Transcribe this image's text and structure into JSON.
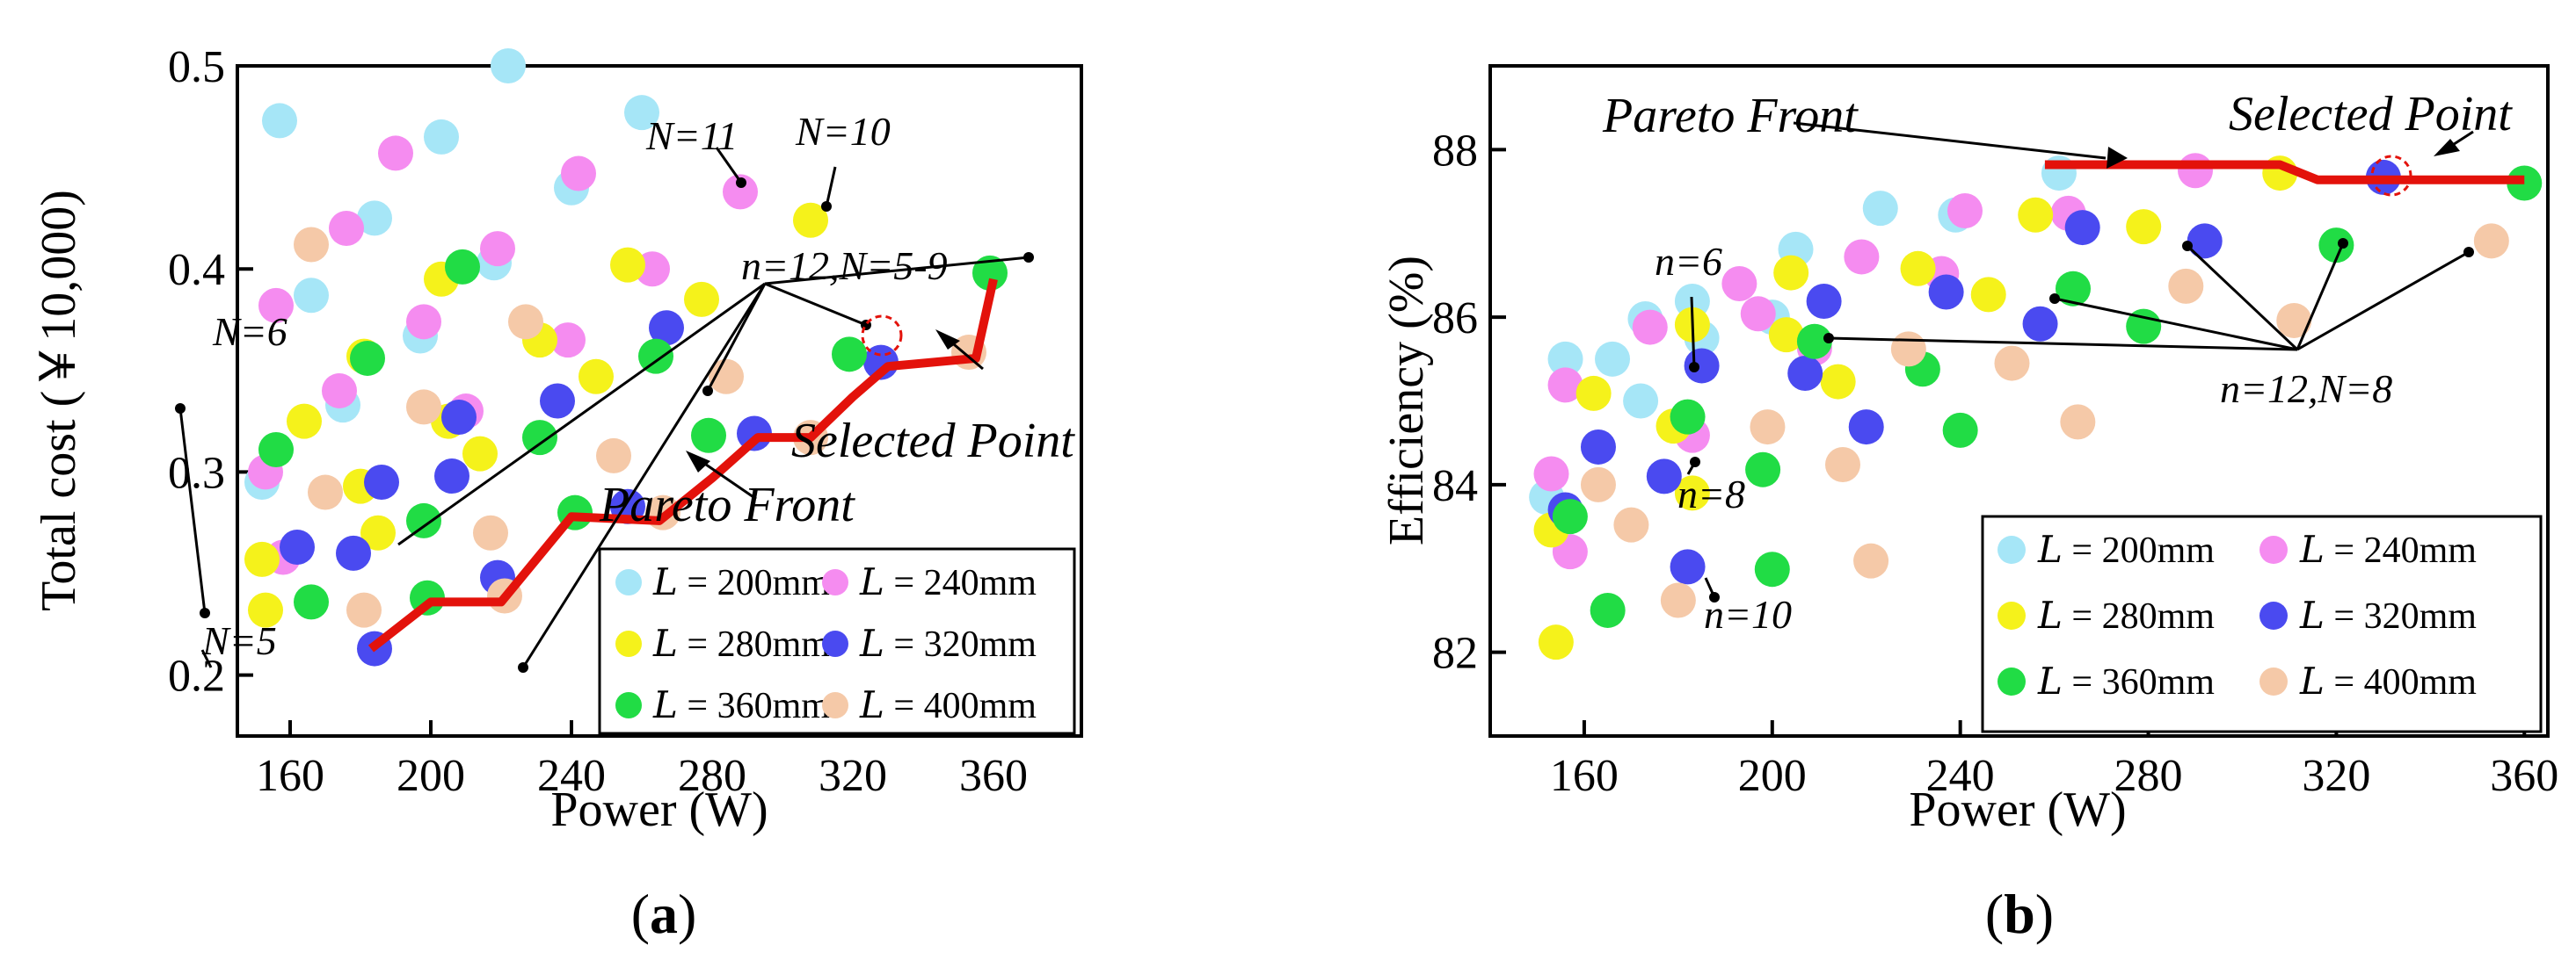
{
  "colors": {
    "L200": "#a6e6f7",
    "L240": "#f58cf0",
    "L280": "#f5f21b",
    "L320": "#4a4af0",
    "L360": "#21dc45",
    "L400": "#f5c9a8",
    "pareto": "#e3120b"
  },
  "panels": [
    {
      "caption_letter": "a",
      "xlabel": "Power (W)",
      "ylabel": "Total cost (￥10,000)",
      "annotations": {
        "n6": "N=6",
        "n5": "N=5",
        "n11": "N=11",
        "n10": "N=10",
        "n12_range": "n=12,N=5-9",
        "selected": "Selected Point",
        "pareto": "Pareto Front"
      },
      "legend": [
        {
          "label": "𝐿 = 200mm",
          "color_key": "L200"
        },
        {
          "label": "𝐿 = 240mm",
          "color_key": "L240"
        },
        {
          "label": "𝐿 = 280mm",
          "color_key": "L280"
        },
        {
          "label": "𝐿 = 320mm",
          "color_key": "L320"
        },
        {
          "label": "𝐿 = 360mm",
          "color_key": "L360"
        },
        {
          "label": "𝐿 = 400mm",
          "color_key": "L400"
        }
      ]
    },
    {
      "caption_letter": "b",
      "xlabel": "Power (W)",
      "ylabel": "Efficiency (%)",
      "annotations": {
        "pareto": "Pareto Front",
        "selected": "Selected Point",
        "n6": "n=6",
        "n8": "n=8",
        "n10": "n=10",
        "n12_n8": "n=12,N=8"
      },
      "legend": [
        {
          "label": "𝐿 = 200mm",
          "color_key": "L200"
        },
        {
          "label": "𝐿 = 240mm",
          "color_key": "L240"
        },
        {
          "label": "𝐿 = 280mm",
          "color_key": "L280"
        },
        {
          "label": "𝐿 = 320mm",
          "color_key": "L320"
        },
        {
          "label": "𝐿 = 360mm",
          "color_key": "L360"
        },
        {
          "label": "𝐿 = 400mm",
          "color_key": "L400"
        }
      ]
    }
  ],
  "chart_data": [
    {
      "type": "scatter",
      "title": "",
      "xlabel": "Power (W)",
      "ylabel": "Total cost (￥10,000)",
      "xlim": [
        145,
        385
      ],
      "ylim": [
        0.17,
        0.5
      ],
      "xticks": [
        160,
        200,
        240,
        280,
        320,
        360
      ],
      "yticks": [
        0.2,
        0.3,
        0.4,
        0.5
      ],
      "series": [
        {
          "name": "L = 200mm",
          "color_key": "L200",
          "points": [
            [
              152,
              0.295
            ],
            [
              157,
              0.473
            ],
            [
              166,
              0.387
            ],
            [
              175,
              0.333
            ],
            [
              184,
              0.425
            ],
            [
              197,
              0.367
            ],
            [
              203,
              0.465
            ],
            [
              218,
              0.403
            ],
            [
              222,
              0.5
            ],
            [
              240,
              0.44
            ],
            [
              260,
              0.477
            ]
          ]
        },
        {
          "name": "L = 240mm",
          "color_key": "L240",
          "points": [
            [
              153,
              0.3
            ],
            [
              156,
              0.382
            ],
            [
              158,
              0.258
            ],
            [
              174,
              0.34
            ],
            [
              176,
              0.42
            ],
            [
              190,
              0.457
            ],
            [
              198,
              0.374
            ],
            [
              210,
              0.33
            ],
            [
              219,
              0.41
            ],
            [
              239,
              0.365
            ],
            [
              242,
              0.447
            ],
            [
              263,
              0.4
            ],
            [
              288,
              0.438
            ]
          ]
        },
        {
          "name": "L = 280mm",
          "color_key": "L280",
          "points": [
            [
              152,
              0.257
            ],
            [
              153,
              0.232
            ],
            [
              164,
              0.325
            ],
            [
              181,
              0.357
            ],
            [
              180,
              0.293
            ],
            [
              185,
              0.27
            ],
            [
              203,
              0.395
            ],
            [
              205,
              0.325
            ],
            [
              214,
              0.309
            ],
            [
              231,
              0.365
            ],
            [
              247,
              0.347
            ],
            [
              256,
              0.402
            ],
            [
              277,
              0.385
            ],
            [
              308,
              0.424
            ]
          ]
        },
        {
          "name": "L = 320mm",
          "color_key": "L320",
          "points": [
            [
              162,
              0.263
            ],
            [
              178,
              0.26
            ],
            [
              186,
              0.295
            ],
            [
              184,
              0.213
            ],
            [
              208,
              0.327
            ],
            [
              206,
              0.298
            ],
            [
              219,
              0.248
            ],
            [
              236,
              0.335
            ],
            [
              256,
              0.283
            ],
            [
              267,
              0.371
            ],
            [
              292,
              0.319
            ],
            [
              328,
              0.354
            ]
          ]
        },
        {
          "name": "L = 360mm",
          "color_key": "L360",
          "points": [
            [
              156,
              0.311
            ],
            [
              166,
              0.236
            ],
            [
              182,
              0.356
            ],
            [
              198,
              0.276
            ],
            [
              199,
              0.238
            ],
            [
              209,
              0.401
            ],
            [
              231,
              0.317
            ],
            [
              241,
              0.28
            ],
            [
              264,
              0.357
            ],
            [
              279,
              0.318
            ],
            [
              319,
              0.358
            ],
            [
              359,
              0.398
            ]
          ]
        },
        {
          "name": "L = 400mm",
          "color_key": "L400",
          "points": [
            [
              166,
              0.412
            ],
            [
              170,
              0.29
            ],
            [
              181,
              0.232
            ],
            [
              198,
              0.332
            ],
            [
              217,
              0.27
            ],
            [
              221,
              0.239
            ],
            [
              227,
              0.374
            ],
            [
              252,
              0.308
            ],
            [
              266,
              0.28
            ],
            [
              284,
              0.347
            ],
            [
              308,
              0.317
            ],
            [
              353,
              0.359
            ]
          ]
        }
      ],
      "pareto_front": {
        "x": [
          183,
          200,
          220,
          240,
          265,
          280,
          293,
          308,
          320,
          330,
          355,
          360
        ],
        "y": [
          0.213,
          0.236,
          0.236,
          0.278,
          0.276,
          0.297,
          0.317,
          0.317,
          0.337,
          0.352,
          0.356,
          0.395
        ]
      },
      "selected_point": {
        "x": 330,
        "y": 0.352
      }
    },
    {
      "type": "scatter",
      "title": "",
      "xlabel": "Power (W)",
      "ylabel": "Efficiency (%)",
      "xlim": [
        140,
        365
      ],
      "ylim": [
        81,
        89
      ],
      "xticks": [
        160,
        200,
        240,
        280,
        320,
        360
      ],
      "yticks": [
        82,
        84,
        86,
        88
      ],
      "series": [
        {
          "name": "L = 200mm",
          "color_key": "L200",
          "points": [
            [
              152,
              83.85
            ],
            [
              156,
              85.5
            ],
            [
              166,
              85.5
            ],
            [
              172,
              85.0
            ],
            [
              173,
              85.98
            ],
            [
              183,
              86.19
            ],
            [
              185,
              85.75
            ],
            [
              200,
              86.0
            ],
            [
              205,
              86.81
            ],
            [
              223,
              87.3
            ],
            [
              239,
              87.22
            ],
            [
              261,
              87.72
            ]
          ]
        },
        {
          "name": "L = 240mm",
          "color_key": "L240",
          "points": [
            [
              153,
              84.13
            ],
            [
              156,
              85.19
            ],
            [
              157,
              83.2
            ],
            [
              174,
              85.88
            ],
            [
              183,
              84.59
            ],
            [
              193,
              86.4
            ],
            [
              197,
              86.04
            ],
            [
              209,
              85.63
            ],
            [
              219,
              86.72
            ],
            [
              236,
              86.52
            ],
            [
              241,
              87.27
            ],
            [
              263,
              87.24
            ],
            [
              290,
              87.75
            ]
          ]
        },
        {
          "name": "L = 280mm",
          "color_key": "L280",
          "points": [
            [
              153,
              83.46
            ],
            [
              154,
              82.12
            ],
            [
              162,
              85.09
            ],
            [
              179,
              84.7
            ],
            [
              183,
              85.91
            ],
            [
              183,
              83.9
            ],
            [
              203,
              85.79
            ],
            [
              204,
              86.53
            ],
            [
              214,
              85.23
            ],
            [
              231,
              86.58
            ],
            [
              246,
              86.27
            ],
            [
              256,
              87.22
            ],
            [
              279,
              87.08
            ],
            [
              308,
              87.72
            ]
          ]
        },
        {
          "name": "L = 320mm",
          "color_key": "L320",
          "points": [
            [
              156,
              83.7
            ],
            [
              163,
              84.45
            ],
            [
              177,
              84.1
            ],
            [
              182,
              83.02
            ],
            [
              185,
              85.42
            ],
            [
              207,
              85.33
            ],
            [
              211,
              86.19
            ],
            [
              220,
              84.69
            ],
            [
              237,
              86.3
            ],
            [
              257,
              85.92
            ],
            [
              266,
              87.07
            ],
            [
              292,
              86.91
            ],
            [
              330,
              87.67
            ]
          ]
        },
        {
          "name": "L = 360mm",
          "color_key": "L360",
          "points": [
            [
              157,
              83.62
            ],
            [
              165,
              82.5
            ],
            [
              182,
              84.81
            ],
            [
              198,
              84.18
            ],
            [
              200,
              82.99
            ],
            [
              209,
              85.71
            ],
            [
              232,
              85.38
            ],
            [
              240,
              84.65
            ],
            [
              264,
              86.34
            ],
            [
              279,
              85.89
            ],
            [
              320,
              86.86
            ],
            [
              360,
              87.6
            ]
          ]
        },
        {
          "name": "L = 400mm",
          "color_key": "L400",
          "points": [
            [
              163,
              84.0
            ],
            [
              170,
              83.52
            ],
            [
              180,
              82.62
            ],
            [
              199,
              84.69
            ],
            [
              215,
              84.24
            ],
            [
              221,
              83.09
            ],
            [
              229,
              85.62
            ],
            [
              251,
              85.45
            ],
            [
              265,
              84.75
            ],
            [
              288,
              86.37
            ],
            [
              311,
              85.96
            ],
            [
              353,
              86.91
            ]
          ]
        }
      ],
      "pareto_front": {
        "x": [
          258,
          267,
          290,
          308,
          316,
          360
        ],
        "y": [
          87.82,
          87.82,
          87.82,
          87.82,
          87.64,
          87.64
        ]
      },
      "selected_point": {
        "x": 330,
        "y": 87.64
      }
    }
  ]
}
